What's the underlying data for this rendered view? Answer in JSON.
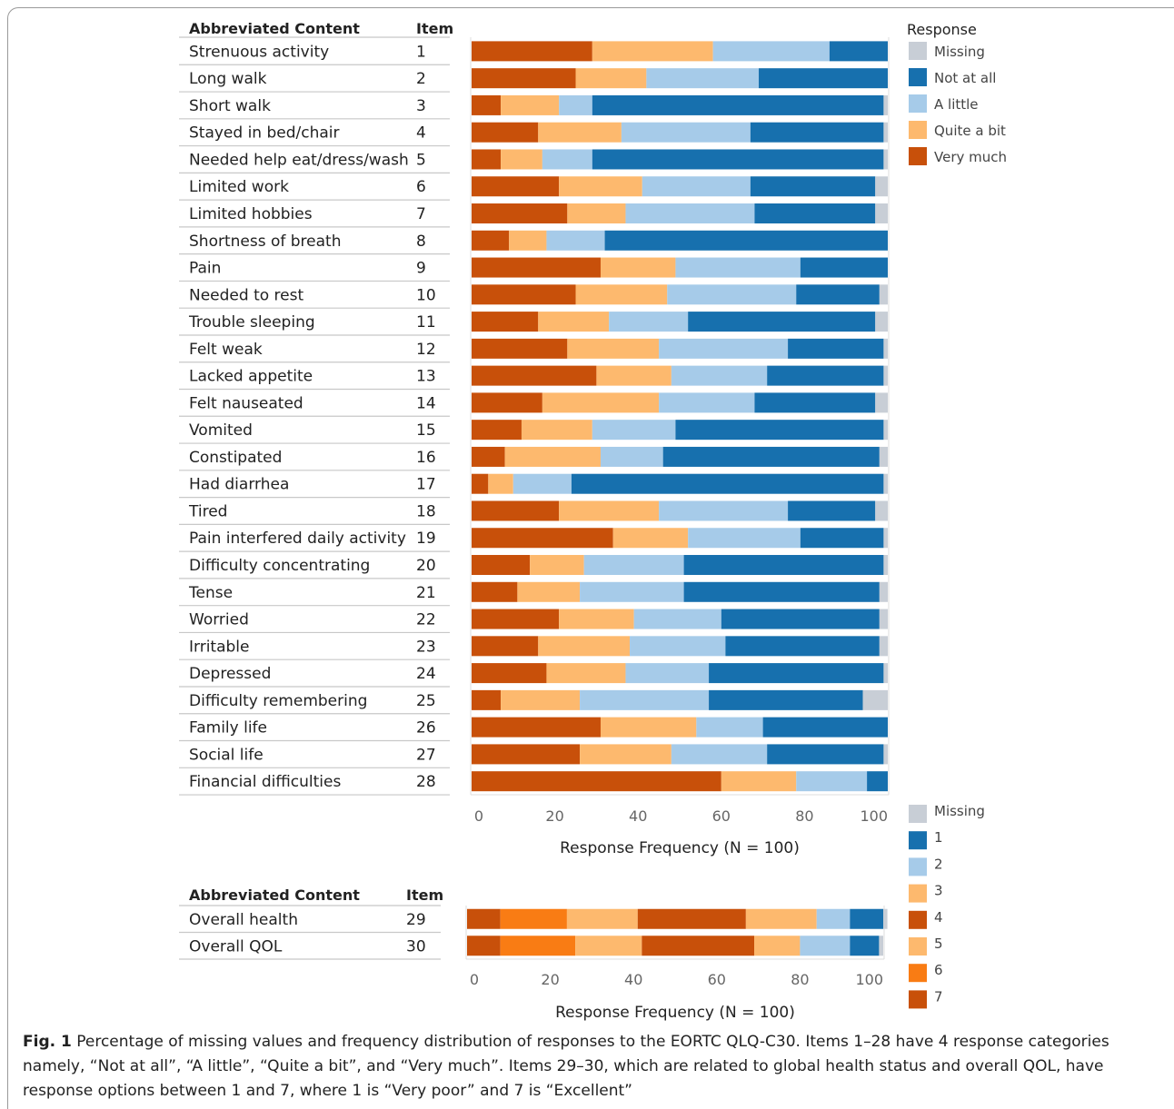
{
  "chart_data": [
    {
      "type": "bar",
      "orientation": "horizontal",
      "stacked": true,
      "table_header": {
        "content": "Abbreviated Content",
        "item": "Item"
      },
      "legend": {
        "title": "Response",
        "position": "right",
        "entries": [
          "Missing",
          "Not at all",
          "A little",
          "Quite a bit",
          "Very much"
        ]
      },
      "colors": {
        "Very much": "#c8500a",
        "Quite a bit": "#fdb96e",
        "A little": "#a6cbe9",
        "Not at all": "#1770ae",
        "Missing": "#c8ced6"
      },
      "stack_order": [
        "Very much",
        "Quite a bit",
        "A little",
        "Not at all",
        "Missing"
      ],
      "rows": [
        {
          "label": "Strenuous activity",
          "item": "1",
          "values": [
            29,
            29,
            28,
            14,
            0
          ]
        },
        {
          "label": "Long walk",
          "item": "2",
          "values": [
            25,
            17,
            27,
            31,
            0
          ]
        },
        {
          "label": "Short walk",
          "item": "3",
          "values": [
            7,
            14,
            8,
            70,
            1
          ]
        },
        {
          "label": "Stayed in bed/chair",
          "item": "4",
          "values": [
            16,
            20,
            31,
            32,
            1
          ]
        },
        {
          "label": "Needed help eat/dress/wash",
          "item": "5",
          "values": [
            7,
            10,
            12,
            70,
            1
          ]
        },
        {
          "label": "Limited work",
          "item": "6",
          "values": [
            21,
            20,
            26,
            30,
            3
          ]
        },
        {
          "label": "Limited hobbies",
          "item": "7",
          "values": [
            23,
            14,
            31,
            29,
            3
          ]
        },
        {
          "label": "Shortness of breath",
          "item": "8",
          "values": [
            9,
            9,
            14,
            68,
            0
          ]
        },
        {
          "label": "Pain",
          "item": "9",
          "values": [
            31,
            18,
            30,
            21,
            0
          ]
        },
        {
          "label": "Needed to rest",
          "item": "10",
          "values": [
            25,
            22,
            31,
            20,
            2
          ]
        },
        {
          "label": "Trouble sleeping",
          "item": "11",
          "values": [
            16,
            17,
            19,
            45,
            3
          ]
        },
        {
          "label": "Felt weak",
          "item": "12",
          "values": [
            23,
            22,
            31,
            23,
            1
          ]
        },
        {
          "label": "Lacked appetite",
          "item": "13",
          "values": [
            30,
            18,
            23,
            28,
            1
          ]
        },
        {
          "label": "Felt nauseated",
          "item": "14",
          "values": [
            17,
            28,
            23,
            29,
            3
          ]
        },
        {
          "label": "Vomited",
          "item": "15",
          "values": [
            12,
            17,
            20,
            50,
            1
          ]
        },
        {
          "label": "Constipated",
          "item": "16",
          "values": [
            8,
            23,
            15,
            52,
            2
          ]
        },
        {
          "label": "Had diarrhea",
          "item": "17",
          "values": [
            4,
            6,
            14,
            75,
            1
          ]
        },
        {
          "label": "Tired",
          "item": "18",
          "values": [
            21,
            24,
            31,
            21,
            3
          ]
        },
        {
          "label": "Pain interfered daily activity",
          "item": "19",
          "values": [
            34,
            18,
            27,
            20,
            1
          ]
        },
        {
          "label": "Difficulty concentrating",
          "item": "20",
          "values": [
            14,
            13,
            24,
            48,
            1
          ]
        },
        {
          "label": "Tense",
          "item": "21",
          "values": [
            11,
            15,
            25,
            47,
            2
          ]
        },
        {
          "label": "Worried",
          "item": "22",
          "values": [
            21,
            18,
            21,
            38,
            2
          ]
        },
        {
          "label": "Irritable",
          "item": "23",
          "values": [
            16,
            22,
            23,
            37,
            2
          ]
        },
        {
          "label": "Depressed",
          "item": "24",
          "values": [
            18,
            19,
            20,
            42,
            1
          ]
        },
        {
          "label": "Difficulty remembering",
          "item": "25",
          "values": [
            7,
            19,
            31,
            37,
            6
          ]
        },
        {
          "label": "Family life",
          "item": "26",
          "values": [
            31,
            23,
            16,
            30,
            0
          ]
        },
        {
          "label": "Social life",
          "item": "27",
          "values": [
            26,
            22,
            23,
            28,
            1
          ]
        },
        {
          "label": "Financial difficulties",
          "item": "28",
          "values": [
            60,
            18,
            17,
            5,
            0
          ]
        }
      ],
      "xlabel": "Response Frequency (N = 100)",
      "xlim": [
        0,
        100
      ],
      "xticks": [
        "0",
        "20",
        "40",
        "60",
        "80",
        "100"
      ],
      "grid": false
    },
    {
      "type": "bar",
      "orientation": "horizontal",
      "stacked": true,
      "table_header": {
        "content": "Abbreviated Content",
        "item": "Item"
      },
      "legend": {
        "title": "",
        "position": "right",
        "entries": [
          "Missing",
          "1",
          "2",
          "3",
          "4",
          "5",
          "6",
          "7"
        ]
      },
      "colors": {
        "7": "#c8500a",
        "6": "#f97c14",
        "5": "#fdb96e",
        "4": "#c8500a",
        "3": "#fdb96e",
        "2": "#a6cbe9",
        "1": "#1770ae",
        "Missing": "#c8ced6"
      },
      "stack_order": [
        "7",
        "6",
        "5",
        "4",
        "3",
        "2",
        "1",
        "Missing"
      ],
      "rows": [
        {
          "label": "Overall health",
          "item": "29",
          "values": [
            8,
            16,
            17,
            26,
            17,
            8,
            8,
            1
          ]
        },
        {
          "label": "Overall QOL",
          "item": "30",
          "values": [
            8,
            18,
            16,
            27,
            11,
            12,
            7,
            1
          ]
        }
      ],
      "xlabel": "Response Frequency (N = 100)",
      "xlim": [
        0,
        100
      ],
      "xticks": [
        "0",
        "20",
        "40",
        "60",
        "80",
        "100"
      ],
      "grid": false
    }
  ],
  "caption": {
    "label": "Fig. 1",
    "text": " Percentage of missing values and frequency distribution of responses to the EORTC QLQ-C30. Items 1–28 have 4 response categories namely, “Not at all”, “A little”, “Quite a bit”, and “Very much”. Items 29–30, which are related to global health status and overall QOL, have response options between 1 and 7, where 1 is “Very poor” and 7 is “Excellent”"
  }
}
